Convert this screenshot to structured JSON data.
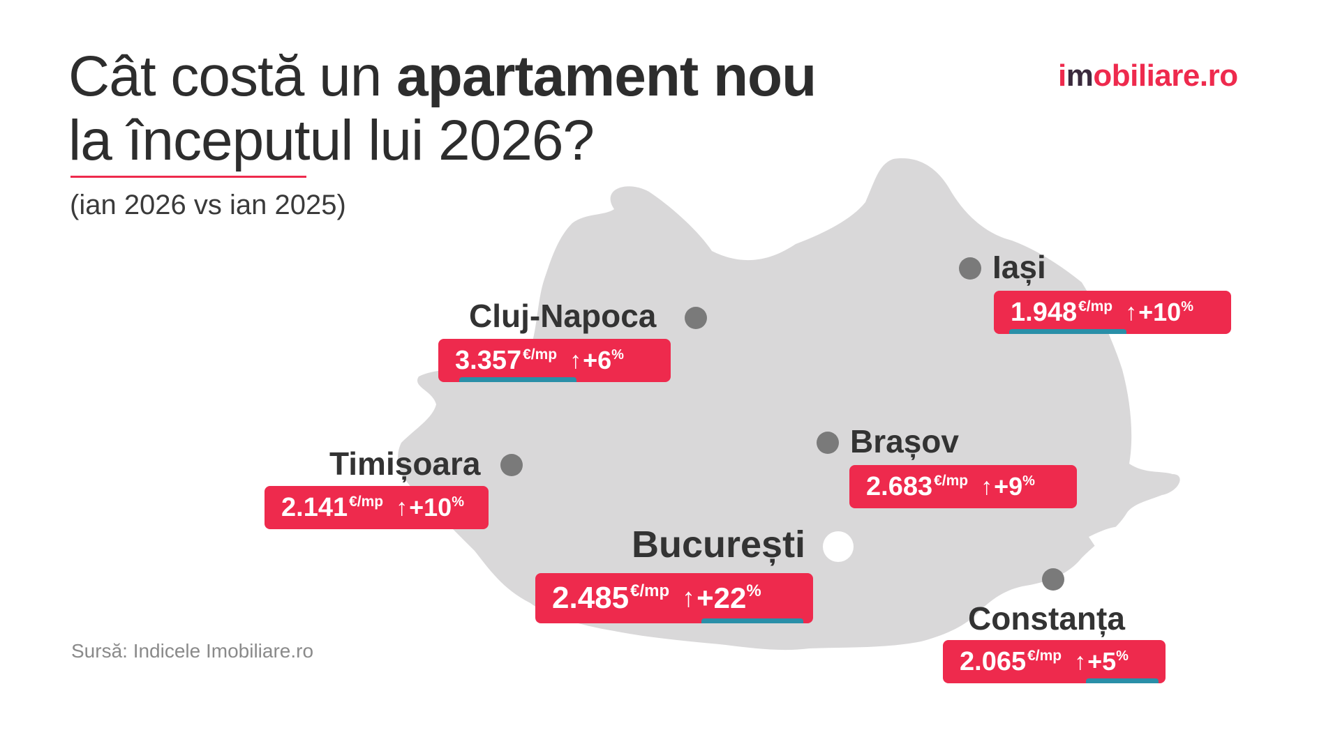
{
  "title": {
    "line1_regular": "Cât costă un ",
    "line1_bold": "apartament nou",
    "line2": "la începutul lui 2026?"
  },
  "subtitle": "(ian 2026 vs ian 2025)",
  "logo": {
    "prefix": "i",
    "highlight": "m",
    "rest": "obiliare.ro"
  },
  "source": "Sursă: Indicele Imobiliare.ro",
  "colors": {
    "brand_red": "#ee2a4d",
    "accent_teal": "#2a8fa8",
    "map_fill": "#d9d8d9",
    "dot_gray": "#7a7a7a",
    "logo_dark": "#3b2a3d"
  },
  "cities": [
    {
      "name": "Cluj-Napoca",
      "price": "3.357",
      "unit": "€/mp",
      "change": "+6",
      "pct": "%",
      "arrow": "↑"
    },
    {
      "name": "Iași",
      "price": "1.948",
      "unit": "€/mp",
      "change": "+10",
      "pct": "%",
      "arrow": "↑"
    },
    {
      "name": "Timișoara",
      "price": "2.141",
      "unit": "€/mp",
      "change": "+10",
      "pct": "%",
      "arrow": "↑"
    },
    {
      "name": "Brașov",
      "price": "2.683",
      "unit": "€/mp",
      "change": "+9",
      "pct": "%",
      "arrow": "↑"
    },
    {
      "name": "București",
      "price": "2.485",
      "unit": "€/mp",
      "change": "+22",
      "pct": "%",
      "arrow": "↑"
    },
    {
      "name": "Constanța",
      "price": "2.065",
      "unit": "€/mp",
      "change": "+5",
      "pct": "%",
      "arrow": "↑"
    }
  ]
}
